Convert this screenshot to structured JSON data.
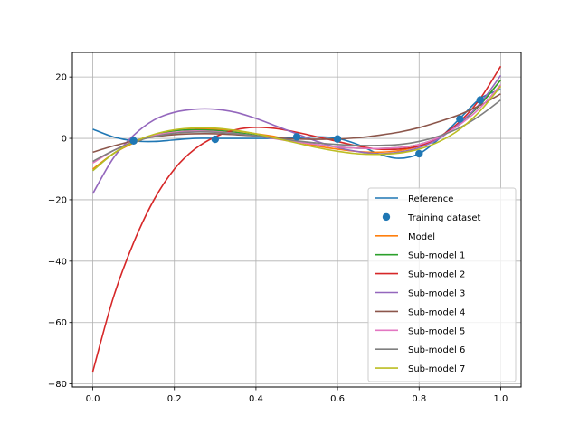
{
  "chart_data": {
    "type": "line",
    "title": "",
    "xlabel": "",
    "ylabel": "",
    "xlim": [
      -0.05,
      1.05
    ],
    "ylim": [
      -81,
      28
    ],
    "xticks": [
      0.0,
      0.2,
      0.4,
      0.6,
      0.8,
      1.0
    ],
    "xtick_labels": [
      "0.0",
      "0.2",
      "0.4",
      "0.6",
      "0.8",
      "1.0"
    ],
    "yticks": [
      -80,
      -60,
      -40,
      -20,
      0,
      20
    ],
    "ytick_labels": [
      "−80",
      "−60",
      "−40",
      "−20",
      "0",
      "20"
    ],
    "grid": true,
    "legend_position": "lower-right",
    "series": [
      {
        "name": "Reference",
        "kind": "line",
        "color": "#1f77b4",
        "x": [
          0.0,
          0.05,
          0.1,
          0.15,
          0.2,
          0.25,
          0.3,
          0.35,
          0.4,
          0.45,
          0.5,
          0.55,
          0.6,
          0.65,
          0.7,
          0.75,
          0.8,
          0.85,
          0.9,
          0.95,
          1.0
        ],
        "y": [
          3.0,
          0.5,
          -0.8,
          -1.0,
          -0.5,
          0.0,
          0.0,
          0.0,
          0.0,
          0.0,
          0.2,
          0.5,
          0.0,
          -2.0,
          -5.0,
          -6.5,
          -5.0,
          0.0,
          6.5,
          13.0,
          16.0
        ]
      },
      {
        "name": "Training dataset",
        "kind": "scatter",
        "color": "#1f77b4",
        "x": [
          0.1,
          0.3,
          0.5,
          0.6,
          0.8,
          0.9,
          0.95
        ],
        "y": [
          -0.8,
          -0.3,
          0.5,
          -0.2,
          -5.0,
          6.3,
          12.5
        ]
      },
      {
        "name": "Model",
        "kind": "line",
        "color": "#ff7f0e",
        "x": [
          0.0,
          0.05,
          0.1,
          0.15,
          0.2,
          0.25,
          0.3,
          0.35,
          0.4,
          0.45,
          0.5,
          0.55,
          0.6,
          0.65,
          0.7,
          0.75,
          0.8,
          0.85,
          0.9,
          0.95,
          1.0
        ],
        "y": [
          -10.0,
          -5.0,
          -1.5,
          1.0,
          2.5,
          3.0,
          3.0,
          2.5,
          1.5,
          0.5,
          -1.0,
          -2.5,
          -3.5,
          -4.3,
          -4.5,
          -4.0,
          -2.5,
          0.5,
          5.0,
          11.0,
          19.0
        ]
      },
      {
        "name": "Sub-model 1",
        "kind": "line",
        "color": "#2ca02c",
        "x": [
          0.0,
          0.05,
          0.1,
          0.15,
          0.2,
          0.25,
          0.3,
          0.35,
          0.4,
          0.45,
          0.5,
          0.55,
          0.6,
          0.65,
          0.7,
          0.75,
          0.8,
          0.85,
          0.9,
          0.95,
          1.0
        ],
        "y": [
          -10.5,
          -5.0,
          -1.2,
          1.2,
          2.5,
          2.8,
          2.6,
          2.0,
          1.0,
          0.0,
          -1.0,
          -2.0,
          -2.8,
          -3.2,
          -3.3,
          -3.0,
          -2.0,
          0.5,
          5.0,
          11.0,
          19.0
        ]
      },
      {
        "name": "Sub-model 2",
        "kind": "line",
        "color": "#d62728",
        "x": [
          0.0,
          0.05,
          0.1,
          0.15,
          0.2,
          0.25,
          0.3,
          0.35,
          0.4,
          0.45,
          0.5,
          0.55,
          0.6,
          0.65,
          0.7,
          0.75,
          0.8,
          0.85,
          0.9,
          0.95,
          1.0
        ],
        "y": [
          -76.0,
          -52.0,
          -34.0,
          -20.0,
          -10.0,
          -3.5,
          0.5,
          2.8,
          3.6,
          3.2,
          2.0,
          0.5,
          -1.0,
          -2.5,
          -3.5,
          -3.5,
          -2.5,
          0.5,
          5.5,
          13.0,
          23.5
        ]
      },
      {
        "name": "Sub-model 3",
        "kind": "line",
        "color": "#9467bd",
        "x": [
          0.0,
          0.05,
          0.1,
          0.15,
          0.2,
          0.25,
          0.3,
          0.35,
          0.4,
          0.45,
          0.5,
          0.55,
          0.6,
          0.65,
          0.7,
          0.75,
          0.8,
          0.85,
          0.9,
          0.95,
          1.0
        ],
        "y": [
          -18.0,
          -6.5,
          1.0,
          6.0,
          8.5,
          9.5,
          9.5,
          8.5,
          6.5,
          4.0,
          1.5,
          -1.0,
          -3.0,
          -4.3,
          -5.0,
          -4.5,
          -3.0,
          0.0,
          5.0,
          11.5,
          20.5
        ]
      },
      {
        "name": "Sub-model 4",
        "kind": "line",
        "color": "#8c564b",
        "x": [
          0.0,
          0.05,
          0.1,
          0.15,
          0.2,
          0.25,
          0.3,
          0.35,
          0.4,
          0.45,
          0.5,
          0.55,
          0.6,
          0.65,
          0.7,
          0.75,
          0.8,
          0.85,
          0.9,
          0.95,
          1.0
        ],
        "y": [
          -4.5,
          -2.5,
          -0.8,
          0.5,
          1.2,
          1.5,
          1.5,
          1.2,
          0.8,
          0.2,
          -0.2,
          -0.3,
          -0.2,
          0.2,
          1.0,
          2.0,
          3.5,
          5.5,
          7.8,
          10.8,
          14.5
        ]
      },
      {
        "name": "Sub-model 5",
        "kind": "line",
        "color": "#e377c2",
        "x": [
          0.0,
          0.05,
          0.1,
          0.15,
          0.2,
          0.25,
          0.3,
          0.35,
          0.4,
          0.45,
          0.5,
          0.55,
          0.6,
          0.65,
          0.7,
          0.75,
          0.8,
          0.85,
          0.9,
          0.95,
          1.0
        ],
        "y": [
          -8.0,
          -4.0,
          -1.0,
          1.0,
          2.0,
          2.4,
          2.2,
          1.6,
          0.8,
          -0.2,
          -1.2,
          -2.0,
          -2.8,
          -3.2,
          -3.3,
          -3.0,
          -2.0,
          0.5,
          4.5,
          10.0,
          17.5
        ]
      },
      {
        "name": "Sub-model 6",
        "kind": "line",
        "color": "#7f7f7f",
        "x": [
          0.0,
          0.05,
          0.1,
          0.15,
          0.2,
          0.25,
          0.3,
          0.35,
          0.4,
          0.45,
          0.5,
          0.55,
          0.6,
          0.65,
          0.7,
          0.75,
          0.8,
          0.85,
          0.9,
          0.95,
          1.0
        ],
        "y": [
          -7.5,
          -4.0,
          -1.2,
          0.6,
          1.7,
          2.1,
          2.0,
          1.5,
          0.8,
          0.0,
          -0.8,
          -1.5,
          -2.0,
          -2.3,
          -2.3,
          -2.0,
          -1.0,
          0.8,
          3.5,
          7.5,
          12.5
        ]
      },
      {
        "name": "Sub-model 7",
        "kind": "line",
        "color": "#bcbd22",
        "x": [
          0.0,
          0.05,
          0.1,
          0.15,
          0.2,
          0.25,
          0.3,
          0.35,
          0.4,
          0.45,
          0.5,
          0.55,
          0.6,
          0.65,
          0.7,
          0.75,
          0.8,
          0.85,
          0.9,
          0.95,
          1.0
        ],
        "y": [
          -10.5,
          -5.0,
          -1.2,
          1.3,
          2.8,
          3.4,
          3.3,
          2.6,
          1.5,
          0.0,
          -1.5,
          -3.0,
          -4.2,
          -5.0,
          -5.2,
          -4.8,
          -3.5,
          -1.0,
          3.0,
          9.0,
          17.0
        ]
      }
    ]
  }
}
